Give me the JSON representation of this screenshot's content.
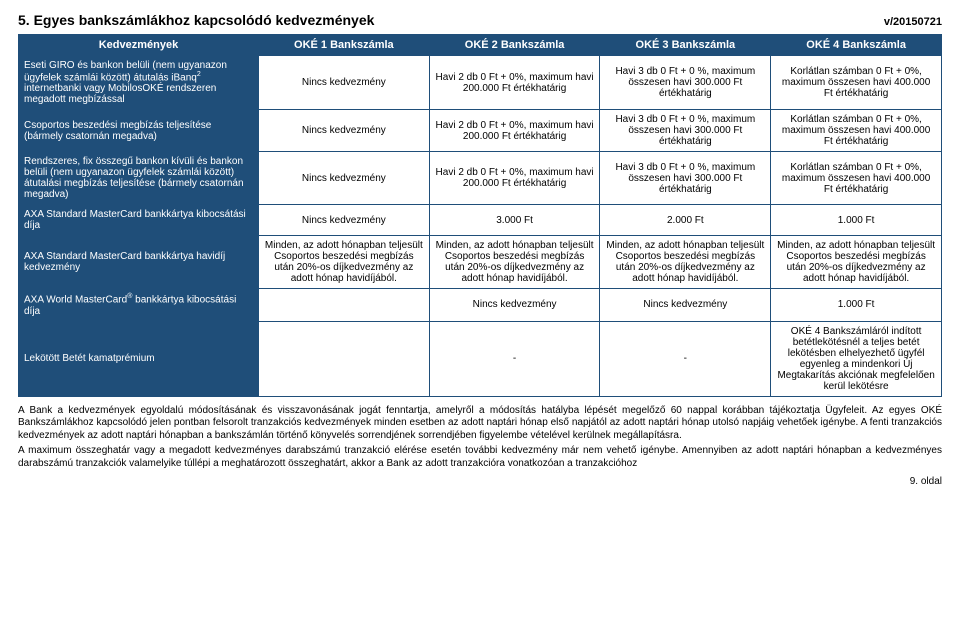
{
  "header": {
    "section_number": "5.",
    "section_title": "Egyes bankszámlákhoz kapcsolódó kedvezmények",
    "version": "v/20150721"
  },
  "table": {
    "header_row": [
      "Kedvezmények",
      "OKÉ 1 Bankszámla",
      "OKÉ 2 Bankszámla",
      "OKÉ 3 Bankszámla",
      "OKÉ 4 Bankszámla"
    ],
    "rows": [
      {
        "label_html": "Eseti GIRO és bankon belüli (nem ugyanazon ügyfelek számlái között) átutalás iBanq<sup>2</sup> internetbanki vagy MobilosOKÉ rendszeren megadott megbízással",
        "cells": [
          "Nincs kedvezmény",
          "Havi 2 db 0 Ft + 0%, maximum havi 200.000 Ft értékhatárig",
          "Havi 3 db 0 Ft + 0 %, maximum összesen havi 300.000 Ft értékhatárig",
          "Korlátlan számban 0 Ft + 0%, maximum összesen havi 400.000 Ft értékhatárig"
        ]
      },
      {
        "label_html": "Csoportos beszedési megbízás teljesítése (bármely csatornán megadva)",
        "cells": [
          "Nincs kedvezmény",
          "Havi 2 db 0 Ft + 0%, maximum havi 200.000 Ft értékhatárig",
          "Havi 3 db 0 Ft + 0 %, maximum összesen havi 300.000 Ft értékhatárig",
          "Korlátlan számban 0 Ft + 0%, maximum összesen havi 400.000 Ft értékhatárig"
        ]
      },
      {
        "label_html": "Rendszeres, fix összegű bankon kívüli és bankon belüli (nem ugyanazon ügyfelek számlái között) átutalási megbízás teljesítése (bármely csatornán megadva)",
        "cells": [
          "Nincs kedvezmény",
          "Havi 2 db 0 Ft + 0%, maximum havi 200.000 Ft értékhatárig",
          "Havi 3 db 0 Ft + 0 %, maximum összesen havi 300.000 Ft értékhatárig",
          "Korlátlan számban 0 Ft + 0%, maximum összesen havi 400.000 Ft értékhatárig"
        ]
      },
      {
        "label_html": "AXA Standard MasterCard bankkártya kibocsátási díja",
        "cells": [
          "Nincs kedvezmény",
          "3.000 Ft",
          "2.000 Ft",
          "1.000 Ft"
        ]
      },
      {
        "label_html": "AXA Standard MasterCard bankkártya havidíj kedvezmény",
        "cells": [
          "Minden, az adott hónapban teljesült Csoportos beszedési megbízás után 20%-os díjkedvezmény az adott hónap havidíjából.",
          "Minden, az adott hónapban teljesült Csoportos beszedési megbízás után 20%-os díjkedvezmény az adott hónap havidíjából.",
          "Minden, az adott hónapban teljesült Csoportos beszedési megbízás után 20%-os díjkedvezmény az adott hónap havidíjából.",
          "Minden, az adott hónapban teljesült Csoportos beszedési megbízás után 20%-os díjkedvezmény az adott hónap havidíjából."
        ]
      },
      {
        "label_html": "AXA World MasterCard<sup>®</sup> bankkártya kibocsátási díja",
        "cells": [
          "",
          "Nincs kedvezmény",
          "Nincs kedvezmény",
          "1.000 Ft"
        ]
      },
      {
        "label_html": "Lekötött Betét kamatprémium",
        "cells": [
          "",
          "-",
          "-",
          "OKÉ 4 Bankszámláról indított betétlekötésnél a teljes betét lekötésben elhelyezhető ügyfél egyenleg a mindenkori Új Megtakarítás akciónak megfelelően kerül lekötésre"
        ]
      }
    ]
  },
  "footer": {
    "p1": "A Bank a kedvezmények egyoldalú módosításának és visszavonásának jogát fenntartja, amelyről a módosítás hatályba lépését megelőző 60 nappal korábban tájékoztatja Ügyfeleit. Az egyes OKÉ Bankszámlákhoz kapcsolódó jelen pontban felsorolt tranzakciós kedvezmények minden esetben az adott naptári hónap első napjától az adott naptári hónap utolsó napjáig vehetőek igénybe. A fenti tranzakciós kedvezmények az adott naptári hónapban a bankszámlán történő könyvelés sorrendjének sorrendjében figyelembe vételével kerülnek megállapításra.",
    "p2": "A maximum összeghatár vagy a megadott kedvezményes darabszámú tranzakció elérése esetén további kedvezmény már nem vehető igénybe. Amennyiben az adott naptári hónapban a kedvezményes darabszámú tranzakciók valamelyike túllépi a meghatározott összeghatárt, akkor a Bank az adott tranzakcióra vonatkozóan a tranzakcióhoz"
  },
  "page_number": "9. oldal"
}
